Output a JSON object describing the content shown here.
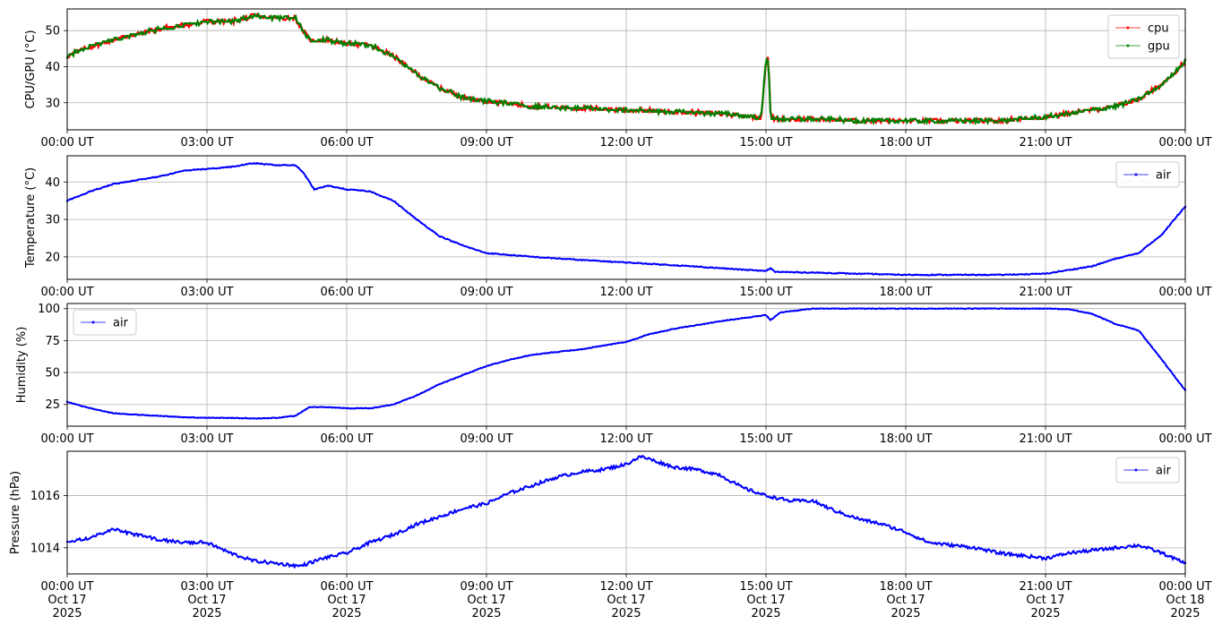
{
  "chart_data": [
    {
      "type": "line",
      "ylabel": "CPU/GPU (°C)",
      "ylim": [
        22.5,
        56
      ],
      "yticks": [
        30,
        40,
        50
      ],
      "x_hours": [
        0,
        0.5,
        1,
        1.5,
        2,
        2.5,
        3,
        3.5,
        4,
        4.5,
        4.9,
        5.05,
        5.25,
        5.5,
        6,
        6.5,
        7,
        7.5,
        8,
        8.5,
        9,
        10,
        11,
        12,
        13,
        14,
        14.9,
        15,
        15.05,
        15.1,
        15.2,
        16,
        17,
        18,
        19,
        20,
        21,
        21.5,
        22,
        22.5,
        23,
        23.5,
        24
      ],
      "x_tick_labels": [
        "00:00 UT",
        "03:00 UT",
        "06:00 UT",
        "09:00 UT",
        "12:00 UT",
        "15:00 UT",
        "18:00 UT",
        "21:00 UT",
        "00:00 UT"
      ],
      "series": [
        {
          "name": "cpu",
          "color": "#ff0000",
          "values": [
            43,
            45.5,
            47.5,
            49,
            50.5,
            51.5,
            52.5,
            52.5,
            54,
            53.5,
            53.5,
            50,
            47,
            47.5,
            46.5,
            46,
            43,
            38,
            34,
            31.5,
            30.5,
            29,
            28.5,
            28,
            27.5,
            27,
            26,
            42,
            42,
            26,
            25.5,
            25.5,
            25,
            25,
            25,
            25,
            26,
            27,
            28,
            29,
            31,
            35,
            41.5
          ]
        },
        {
          "name": "gpu",
          "color": "#008000",
          "values": [
            43,
            45.5,
            47.5,
            49,
            50.5,
            51.5,
            52.5,
            52.5,
            54,
            53.5,
            53.5,
            50,
            47,
            47.5,
            46.5,
            46,
            43,
            38,
            34,
            31.5,
            30.5,
            29,
            28.5,
            28,
            27.5,
            27,
            26,
            42,
            42,
            26,
            25.5,
            25.5,
            25,
            25,
            25,
            25,
            26,
            27,
            28,
            29,
            31,
            35,
            41.5
          ]
        }
      ],
      "legend": "upper right"
    },
    {
      "type": "line",
      "ylabel": "Temperature (°C)",
      "ylim": [
        14,
        47
      ],
      "yticks": [
        20,
        30,
        40
      ],
      "x_hours": [
        0,
        0.5,
        1,
        1.5,
        2,
        2.5,
        3,
        3.5,
        4,
        4.5,
        4.9,
        5.1,
        5.3,
        5.6,
        6,
        6.5,
        7,
        7.5,
        8,
        8.5,
        9,
        10,
        11,
        12,
        13,
        14,
        15,
        15.1,
        15.2,
        16,
        17,
        18,
        19,
        20,
        21,
        21.5,
        22,
        22.5,
        23,
        23.5,
        24
      ],
      "x_tick_labels": [
        "00:00 UT",
        "03:00 UT",
        "06:00 UT",
        "09:00 UT",
        "12:00 UT",
        "15:00 UT",
        "18:00 UT",
        "21:00 UT",
        "00:00 UT"
      ],
      "series": [
        {
          "name": "air",
          "color": "#0000ff",
          "values": [
            35,
            37.5,
            39.5,
            40.5,
            41.5,
            43,
            43.5,
            44,
            45,
            44.5,
            44.5,
            42,
            38,
            39,
            38,
            37.5,
            35,
            30,
            25.5,
            23,
            21,
            20,
            19.2,
            18.5,
            17.8,
            17,
            16.2,
            17,
            16,
            15.8,
            15.5,
            15.2,
            15.2,
            15.2,
            15.5,
            16.5,
            17.5,
            19.5,
            21,
            26,
            33.5
          ]
        }
      ],
      "legend": "upper right"
    },
    {
      "type": "line",
      "ylabel": "Humidity (%)",
      "ylim": [
        8,
        104
      ],
      "yticks": [
        25,
        50,
        75,
        100
      ],
      "x_hours": [
        0,
        0.5,
        1,
        1.5,
        2,
        2.5,
        3,
        3.5,
        4,
        4.5,
        4.9,
        5.2,
        5.5,
        6,
        6.5,
        7,
        7.5,
        8,
        8.5,
        9,
        9.5,
        10,
        11,
        12,
        12.5,
        13,
        14,
        15,
        15.1,
        15.3,
        16,
        17,
        18,
        19,
        20,
        21,
        21.5,
        22,
        22.5,
        23,
        23.5,
        24
      ],
      "x_tick_labels": [
        "00:00 UT",
        "03:00 UT",
        "06:00 UT",
        "09:00 UT",
        "12:00 UT",
        "15:00 UT",
        "18:00 UT",
        "21:00 UT",
        "00:00 UT"
      ],
      "series": [
        {
          "name": "air",
          "color": "#0000ff",
          "values": [
            27,
            22,
            18,
            17,
            16,
            15,
            14.5,
            14.5,
            14,
            14.5,
            16,
            23,
            23,
            22,
            22,
            25,
            32,
            41,
            48,
            55,
            60,
            64,
            68,
            74,
            80,
            84,
            90,
            95,
            91,
            97,
            100,
            100,
            100,
            100,
            100,
            100,
            99.5,
            96,
            88,
            83,
            60,
            36
          ]
        }
      ],
      "legend": "upper left"
    },
    {
      "type": "line",
      "ylabel": "Pressure (hPa)",
      "ylim": [
        1013,
        1017.7
      ],
      "yticks": [
        1014,
        1016
      ],
      "x_hours": [
        0,
        0.5,
        1,
        1.5,
        2,
        2.5,
        3,
        3.5,
        4,
        4.5,
        5,
        5.5,
        6,
        6.5,
        7,
        7.5,
        8,
        8.5,
        9,
        9.5,
        10,
        10.5,
        11,
        11.5,
        12,
        12.3,
        12.5,
        13,
        13.5,
        14,
        14.5,
        15,
        15.5,
        16,
        16.5,
        17,
        17.5,
        18,
        18.5,
        19,
        19.5,
        20,
        20.5,
        21,
        21.5,
        22,
        22.5,
        23,
        23.5,
        24
      ],
      "x_tick_labels": [
        "00:00 UT\nOct 17\n2025",
        "03:00 UT\nOct 17\n2025",
        "06:00 UT\nOct 17\n2025",
        "09:00 UT\nOct 17\n2025",
        "12:00 UT\nOct 17\n2025",
        "15:00 UT\nOct 17\n2025",
        "18:00 UT\nOct 17\n2025",
        "21:00 UT\nOct 17\n2025",
        "00:00 UT\nOct 18\n2025"
      ],
      "series": [
        {
          "name": "air",
          "color": "#0000ff",
          "values": [
            1014.2,
            1014.4,
            1014.7,
            1014.5,
            1014.3,
            1014.2,
            1014.2,
            1013.8,
            1013.5,
            1013.4,
            1013.3,
            1013.6,
            1013.8,
            1014.2,
            1014.5,
            1014.9,
            1015.2,
            1015.5,
            1015.7,
            1016.1,
            1016.4,
            1016.7,
            1016.9,
            1017.0,
            1017.2,
            1017.5,
            1017.4,
            1017.1,
            1017.0,
            1016.8,
            1016.3,
            1016.0,
            1015.8,
            1015.8,
            1015.4,
            1015.1,
            1014.9,
            1014.6,
            1014.2,
            1014.1,
            1014.0,
            1013.8,
            1013.7,
            1013.6,
            1013.8,
            1013.9,
            1014.0,
            1014.1,
            1013.8,
            1013.4
          ]
        }
      ],
      "legend": "upper right"
    }
  ]
}
